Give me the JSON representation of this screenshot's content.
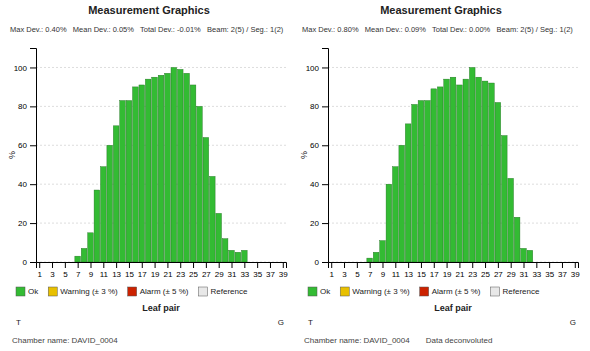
{
  "chart_data": [
    {
      "type": "bar",
      "title": "Measurement Graphics",
      "subtitle": "Max Dev.: 0.40%   Mean Dev.: 0.05%   Total Dev.: -0.01%   Beam: 2(5) / Seg.: 1(2)",
      "x_label": "Leaf pair",
      "y_label": "%",
      "x": [
        7,
        8,
        9,
        10,
        11,
        12,
        13,
        14,
        15,
        16,
        17,
        18,
        19,
        20,
        21,
        22,
        23,
        24,
        25,
        26,
        27,
        28,
        29,
        30,
        31,
        32,
        33
      ],
      "series": [
        {
          "name": "Ok",
          "color": "#33bb33",
          "values": [
            3,
            7,
            15,
            37,
            49,
            60,
            70,
            83,
            83,
            90,
            91,
            94,
            95,
            96,
            97,
            100,
            99,
            97,
            91,
            80,
            64,
            44,
            25,
            12,
            6,
            5,
            6
          ]
        },
        {
          "name": "Warning (± 3 %)",
          "color": "#e8c000",
          "values": [
            null,
            null,
            null,
            null,
            null,
            null,
            null,
            null,
            null,
            null,
            null,
            null,
            null,
            null,
            null,
            null,
            null,
            null,
            null,
            null,
            null,
            null,
            null,
            null,
            null,
            null,
            null
          ]
        },
        {
          "name": "Alarm (± 5 %)",
          "color": "#cc2200",
          "values": [
            null,
            null,
            null,
            null,
            null,
            null,
            null,
            null,
            null,
            null,
            null,
            null,
            null,
            null,
            null,
            null,
            null,
            null,
            null,
            null,
            null,
            null,
            null,
            null,
            null,
            null,
            null
          ]
        },
        {
          "name": "Reference",
          "color": "#e8e8e8",
          "values": [
            null,
            null,
            null,
            null,
            null,
            null,
            null,
            null,
            null,
            null,
            null,
            null,
            null,
            null,
            null,
            null,
            null,
            null,
            null,
            null,
            null,
            null,
            null,
            null,
            null,
            null,
            null
          ]
        }
      ],
      "xlim": [
        0.5,
        39.5
      ],
      "xticks": [
        1,
        3,
        5,
        7,
        9,
        11,
        13,
        15,
        17,
        19,
        21,
        23,
        25,
        27,
        29,
        31,
        33,
        35,
        37,
        39
      ],
      "ylim": [
        0,
        110
      ],
      "yticks": [
        0,
        20,
        40,
        60,
        80,
        100
      ],
      "grid": true,
      "legend": "bottom",
      "annotations": [
        "T",
        "G",
        "Chamber name: DAVID_0004"
      ]
    },
    {
      "type": "bar",
      "title": "Measurement Graphics",
      "subtitle": "Max Dev.: 0.80%   Mean Dev.: 0.09%   Total Dev.: 0.00%   Beam: 2(5) / Seg.: 1(2)",
      "x_label": "Leaf pair",
      "y_label": "%",
      "x": [
        7,
        8,
        9,
        10,
        11,
        12,
        13,
        14,
        15,
        16,
        17,
        18,
        19,
        20,
        21,
        22,
        23,
        24,
        25,
        26,
        27,
        28,
        29,
        30,
        31,
        32
      ],
      "series": [
        {
          "name": "Ok",
          "color": "#33bb33",
          "values": [
            2,
            5,
            11,
            40,
            49,
            60,
            71,
            81,
            83,
            83,
            89,
            90,
            94,
            95,
            91,
            94,
            100,
            95,
            93,
            92,
            82,
            65,
            43,
            23,
            7,
            6
          ]
        },
        {
          "name": "Warning (± 3 %)",
          "color": "#e8c000",
          "values": [
            null,
            null,
            null,
            null,
            null,
            null,
            null,
            null,
            null,
            null,
            null,
            null,
            null,
            null,
            null,
            null,
            null,
            null,
            null,
            null,
            null,
            null,
            null,
            null,
            null,
            null
          ]
        },
        {
          "name": "Alarm (± 5 %)",
          "color": "#cc2200",
          "values": [
            null,
            null,
            null,
            null,
            null,
            null,
            null,
            null,
            null,
            null,
            null,
            null,
            null,
            null,
            null,
            null,
            null,
            null,
            null,
            null,
            null,
            null,
            null,
            null,
            null,
            null
          ]
        },
        {
          "name": "Reference",
          "color": "#e8e8e8",
          "values": [
            null,
            null,
            null,
            null,
            null,
            null,
            null,
            null,
            null,
            null,
            null,
            null,
            null,
            null,
            null,
            null,
            null,
            null,
            null,
            null,
            null,
            null,
            null,
            null,
            null,
            null
          ]
        }
      ],
      "xlim": [
        0.5,
        39.5
      ],
      "xticks": [
        1,
        3,
        5,
        7,
        9,
        11,
        13,
        15,
        17,
        19,
        21,
        23,
        25,
        27,
        29,
        31,
        33,
        35,
        37,
        39
      ],
      "ylim": [
        0,
        110
      ],
      "yticks": [
        0,
        20,
        40,
        60,
        80,
        100
      ],
      "grid": true,
      "legend": "bottom",
      "annotations": [
        "T",
        "G",
        "Chamber name: DAVID_0004",
        "Data deconvoluted"
      ]
    }
  ]
}
